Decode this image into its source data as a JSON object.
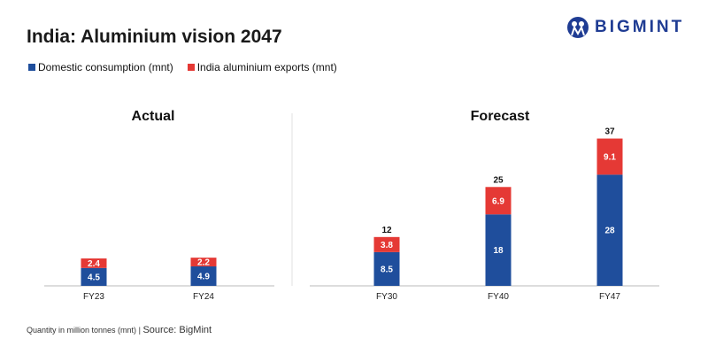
{
  "title": "India: Aluminium vision 2047",
  "logo": {
    "text": "BIGMINT"
  },
  "footer": {
    "note": "Quantity in million tonnes (mnt)",
    "separator": "|",
    "source": "Source: BigMint"
  },
  "colors": {
    "domestic": "#1f4e9c",
    "exports": "#e53935"
  },
  "chart_data": {
    "type": "bar",
    "stacked": true,
    "legend_position": "top-left",
    "series": [
      {
        "name": "Domestic consumption (mnt)",
        "values": [
          4.5,
          4.9,
          8.5,
          18,
          28
        ]
      },
      {
        "name": "India aluminium exports (mnt)",
        "values": [
          2.4,
          2.2,
          3.8,
          6.9,
          9.1
        ]
      }
    ],
    "categories": [
      "FY23",
      "FY24",
      "FY30",
      "FY40",
      "FY47"
    ],
    "totals": [
      null,
      null,
      "12",
      "25",
      "37"
    ],
    "panels": [
      {
        "title": "Actual",
        "categories": [
          "FY23",
          "FY24"
        ]
      },
      {
        "title": "Forecast",
        "categories": [
          "FY30",
          "FY40",
          "FY47"
        ]
      }
    ],
    "grid": false,
    "ylim": [
      0,
      37
    ]
  }
}
